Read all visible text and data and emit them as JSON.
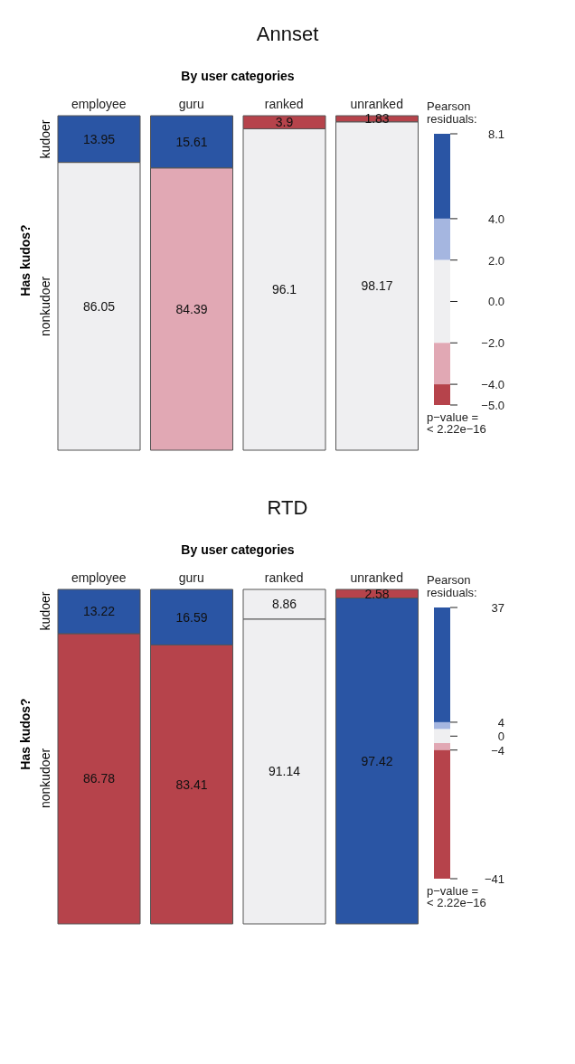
{
  "chart_data": [
    {
      "type": "bar",
      "stacked": true,
      "title": "Annset",
      "xlabel": "By user categories",
      "ylabel": "Has kudos?",
      "categories": [
        "employee",
        "guru",
        "ranked",
        "unranked"
      ],
      "data_labels": true,
      "clabel": "Pearson residuals:",
      "clim": [
        -5.0,
        8.1
      ],
      "cticks": [
        {
          "value": 8.1,
          "label": "8.1"
        },
        {
          "value": 4,
          "label": "4.0"
        },
        {
          "value": 2,
          "label": "2.0"
        },
        {
          "value": 0,
          "label": "0.0"
        },
        {
          "value": -2,
          "label": "−2.0"
        },
        {
          "value": -4,
          "label": "−4.0"
        },
        {
          "value": -5,
          "label": "−5.0"
        }
      ],
      "annotations": [
        "p−value =\n< 2.22e−16"
      ],
      "series": [
        {
          "name": "nonkudoer",
          "values": [
            86.05,
            84.39,
            96.1,
            98.17
          ],
          "colors": [
            "#efeff1",
            "#e1a8b4",
            "#efeff1",
            "#efeff1"
          ]
        },
        {
          "name": "kudoer",
          "values": [
            13.95,
            15.61,
            3.9,
            1.83
          ],
          "colors": [
            "#2a55a4",
            "#2a55a4",
            "#b6434b",
            "#b6434b"
          ]
        }
      ]
    },
    {
      "type": "bar",
      "stacked": true,
      "title": "RTD",
      "xlabel": "By user categories",
      "ylabel": "Has kudos?",
      "categories": [
        "employee",
        "guru",
        "ranked",
        "unranked"
      ],
      "data_labels": true,
      "clabel": "Pearson residuals:",
      "clim": [
        -41,
        37
      ],
      "cticks": [
        37,
        4,
        0,
        {
          "value": -4,
          "label": "−4"
        },
        {
          "value": -41,
          "label": "−41"
        }
      ],
      "annotations": [
        "p−value =\n< 2.22e−16"
      ],
      "series": [
        {
          "name": "nonkudoer",
          "values": [
            86.78,
            83.41,
            91.14,
            97.42
          ],
          "colors": [
            "#b6434b",
            "#b6434b",
            "#efeff1",
            "#2a55a4"
          ]
        },
        {
          "name": "kudoer",
          "values": [
            13.22,
            16.59,
            8.86,
            2.58
          ],
          "colors": [
            "#2a55a4",
            "#2a55a4",
            "#efeff1",
            "#b6434b"
          ]
        }
      ]
    }
  ]
}
